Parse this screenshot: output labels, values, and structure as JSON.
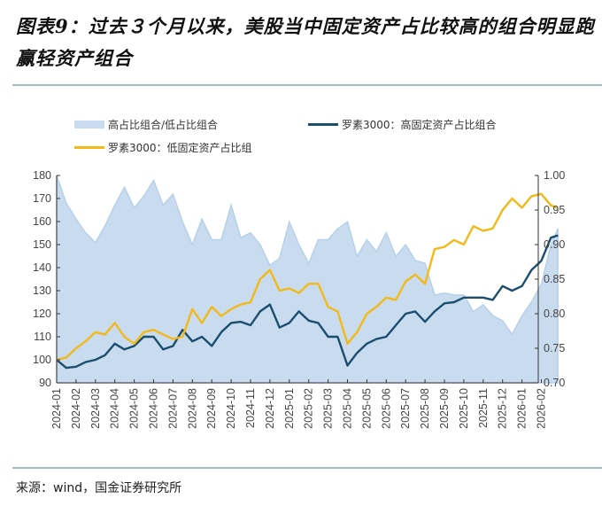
{
  "title": "图表9：过去３个月以来，美股当中固定资产占比较高的组合明显跑赢轻资产组合",
  "source": "来源：wind，国金证券研究所",
  "chart_data": {
    "type": "line",
    "title": "",
    "legend_position": "top",
    "grid": false,
    "x_tick_labels": [
      "2024-01",
      "2024-02",
      "2024-03",
      "2024-04",
      "2024-05",
      "2024-06",
      "2024-07",
      "2024-08",
      "2024-09",
      "2024-10",
      "2024-11",
      "2024-12",
      "2025-01",
      "2025-02",
      "2025-03",
      "2025-04",
      "2025-05",
      "2025-06",
      "2025-07",
      "2025-08",
      "2025-09",
      "2025-10",
      "2025-11",
      "2025-12",
      "2026-01",
      "2026-02"
    ],
    "y_left": {
      "range": [
        90,
        180
      ],
      "ticks": [
        "90",
        "100",
        "110",
        "120",
        "130",
        "140",
        "150",
        "160",
        "170",
        "180"
      ]
    },
    "y_right": {
      "range": [
        0.7,
        1.0
      ],
      "ticks": [
        "0.70",
        "0.75",
        "0.80",
        "0.85",
        "0.90",
        "0.95",
        "1.00"
      ]
    },
    "x": [
      "2024-01-01",
      "2024-01-16",
      "2024-02-01",
      "2024-02-16",
      "2024-03-01",
      "2024-03-16",
      "2024-04-01",
      "2024-04-16",
      "2024-05-01",
      "2024-05-16",
      "2024-06-01",
      "2024-06-16",
      "2024-07-01",
      "2024-07-16",
      "2024-08-01",
      "2024-08-16",
      "2024-09-01",
      "2024-09-16",
      "2024-10-01",
      "2024-10-16",
      "2024-11-01",
      "2024-11-16",
      "2024-12-01",
      "2024-12-16",
      "2025-01-01",
      "2025-01-16",
      "2025-02-01",
      "2025-02-16",
      "2025-03-01",
      "2025-03-16",
      "2025-04-01",
      "2025-04-16",
      "2025-05-01",
      "2025-05-16",
      "2025-06-01",
      "2025-06-16",
      "2025-07-01",
      "2025-07-16",
      "2025-08-01",
      "2025-08-16",
      "2025-09-01",
      "2025-09-16",
      "2025-10-01",
      "2025-10-16",
      "2025-11-01",
      "2025-11-16",
      "2025-12-01",
      "2025-12-16",
      "2026-01-01",
      "2026-01-16",
      "2026-02-01",
      "2026-02-16",
      "2026-02-27"
    ],
    "series": [
      {
        "name": "高占比组合/低占比组合",
        "type": "area",
        "axis": "right",
        "color": "#c9dcef",
        "values": [
          1.0,
          0.96,
          0.937,
          0.917,
          0.903,
          0.927,
          0.957,
          0.983,
          0.953,
          0.97,
          0.993,
          0.957,
          0.973,
          0.933,
          0.9,
          0.937,
          0.907,
          0.907,
          0.957,
          0.91,
          0.917,
          0.9,
          0.87,
          0.88,
          0.933,
          0.9,
          0.873,
          0.907,
          0.907,
          0.923,
          0.933,
          0.883,
          0.907,
          0.89,
          0.917,
          0.883,
          0.9,
          0.877,
          0.873,
          0.827,
          0.83,
          0.827,
          0.827,
          0.803,
          0.813,
          0.797,
          0.79,
          0.77,
          0.797,
          0.817,
          0.843,
          0.9,
          0.923
        ]
      },
      {
        "name": "罗素3000：高固定资产占比组合",
        "type": "line",
        "axis": "left",
        "color": "#1a4e6e",
        "values": [
          100,
          96.5,
          97,
          99,
          100,
          102,
          107,
          104.5,
          106,
          110,
          110,
          104.5,
          106,
          113,
          108,
          110,
          106,
          112,
          116,
          116.5,
          115,
          121,
          124,
          114,
          116,
          121,
          117,
          116,
          110,
          110,
          97.5,
          103,
          107,
          109,
          110,
          115,
          120,
          121,
          116.5,
          121,
          124.5,
          125,
          127,
          127,
          127,
          126,
          132,
          130,
          132,
          139,
          143,
          153,
          154
        ]
      },
      {
        "name": "罗素3000：低固定资产占比组",
        "type": "line",
        "axis": "left",
        "color": "#f2b919",
        "values": [
          100,
          101,
          105,
          108,
          112,
          111,
          116,
          110,
          107,
          112,
          113,
          111,
          109,
          110,
          122,
          116,
          123,
          119,
          122,
          124,
          125,
          135,
          139,
          130,
          131,
          129,
          133,
          133,
          123,
          121,
          107,
          112,
          120,
          123,
          127,
          126,
          134,
          137,
          133,
          148,
          149,
          152,
          150,
          158,
          156,
          157,
          165,
          170,
          166,
          171,
          172,
          167,
          166
        ]
      }
    ]
  }
}
